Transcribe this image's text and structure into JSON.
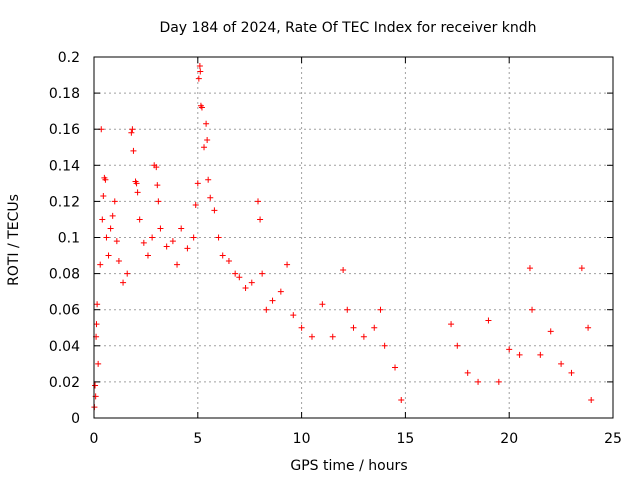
{
  "chart_data": {
    "type": "scatter",
    "title": "Day 184 of 2024, Rate Of TEC Index for receiver kndh",
    "xlabel": "GPS time / hours",
    "ylabel": "ROTI / TECUs",
    "xlim": [
      0,
      25
    ],
    "ylim": [
      0,
      0.2
    ],
    "x_ticks": [
      0,
      5,
      10,
      15,
      20,
      25
    ],
    "x_tick_labels": [
      "0",
      "5",
      "10",
      "15",
      "20",
      "25"
    ],
    "y_ticks": [
      0,
      0.02,
      0.04,
      0.06,
      0.08,
      0.1,
      0.12,
      0.14,
      0.16,
      0.18,
      0.2
    ],
    "y_tick_labels": [
      "0",
      "0.02",
      "0.04",
      "0.06",
      "0.08",
      "0.1",
      "0.12",
      "0.14",
      "0.16",
      "0.18",
      "0.2"
    ],
    "grid": true,
    "marker": "+",
    "color": "#ff0000",
    "data_gap_hours": [
      14.9,
      17.1
    ],
    "series": [
      {
        "name": "ROTI",
        "points": [
          [
            0.02,
            0.006
          ],
          [
            0.05,
            0.018
          ],
          [
            0.08,
            0.012
          ],
          [
            0.1,
            0.045
          ],
          [
            0.12,
            0.052
          ],
          [
            0.15,
            0.063
          ],
          [
            0.2,
            0.03
          ],
          [
            0.3,
            0.085
          ],
          [
            0.35,
            0.16
          ],
          [
            0.4,
            0.11
          ],
          [
            0.45,
            0.123
          ],
          [
            0.5,
            0.133
          ],
          [
            0.55,
            0.132
          ],
          [
            0.6,
            0.1
          ],
          [
            0.7,
            0.09
          ],
          [
            0.8,
            0.105
          ],
          [
            0.9,
            0.112
          ],
          [
            1.0,
            0.12
          ],
          [
            1.1,
            0.098
          ],
          [
            1.2,
            0.087
          ],
          [
            1.4,
            0.075
          ],
          [
            1.6,
            0.08
          ],
          [
            1.8,
            0.158
          ],
          [
            1.85,
            0.16
          ],
          [
            1.9,
            0.148
          ],
          [
            2.0,
            0.131
          ],
          [
            2.05,
            0.13
          ],
          [
            2.1,
            0.125
          ],
          [
            2.2,
            0.11
          ],
          [
            2.4,
            0.097
          ],
          [
            2.6,
            0.09
          ],
          [
            2.8,
            0.1
          ],
          [
            2.9,
            0.14
          ],
          [
            3.0,
            0.139
          ],
          [
            3.05,
            0.129
          ],
          [
            3.1,
            0.12
          ],
          [
            3.2,
            0.105
          ],
          [
            3.5,
            0.095
          ],
          [
            3.8,
            0.098
          ],
          [
            4.0,
            0.085
          ],
          [
            4.2,
            0.105
          ],
          [
            4.5,
            0.094
          ],
          [
            4.8,
            0.1
          ],
          [
            4.9,
            0.118
          ],
          [
            5.0,
            0.13
          ],
          [
            5.05,
            0.188
          ],
          [
            5.1,
            0.195
          ],
          [
            5.12,
            0.192
          ],
          [
            5.15,
            0.173
          ],
          [
            5.2,
            0.172
          ],
          [
            5.3,
            0.15
          ],
          [
            5.4,
            0.163
          ],
          [
            5.45,
            0.154
          ],
          [
            5.5,
            0.132
          ],
          [
            5.6,
            0.122
          ],
          [
            5.8,
            0.115
          ],
          [
            6.0,
            0.1
          ],
          [
            6.2,
            0.09
          ],
          [
            6.5,
            0.087
          ],
          [
            6.8,
            0.08
          ],
          [
            7.0,
            0.078
          ],
          [
            7.3,
            0.072
          ],
          [
            7.6,
            0.075
          ],
          [
            7.9,
            0.12
          ],
          [
            8.0,
            0.11
          ],
          [
            8.1,
            0.08
          ],
          [
            8.3,
            0.06
          ],
          [
            8.6,
            0.065
          ],
          [
            9.0,
            0.07
          ],
          [
            9.3,
            0.085
          ],
          [
            9.6,
            0.057
          ],
          [
            10.0,
            0.05
          ],
          [
            10.5,
            0.045
          ],
          [
            11.0,
            0.063
          ],
          [
            11.5,
            0.045
          ],
          [
            12.0,
            0.082
          ],
          [
            12.2,
            0.06
          ],
          [
            12.5,
            0.05
          ],
          [
            13.0,
            0.045
          ],
          [
            13.5,
            0.05
          ],
          [
            13.8,
            0.06
          ],
          [
            14.0,
            0.04
          ],
          [
            14.5,
            0.028
          ],
          [
            14.8,
            0.01
          ],
          [
            17.2,
            0.052
          ],
          [
            17.5,
            0.04
          ],
          [
            18.0,
            0.025
          ],
          [
            18.5,
            0.02
          ],
          [
            19.0,
            0.054
          ],
          [
            19.5,
            0.02
          ],
          [
            20.0,
            0.038
          ],
          [
            20.5,
            0.035
          ],
          [
            21.0,
            0.083
          ],
          [
            21.1,
            0.06
          ],
          [
            21.5,
            0.035
          ],
          [
            22.0,
            0.048
          ],
          [
            22.5,
            0.03
          ],
          [
            23.0,
            0.025
          ],
          [
            23.5,
            0.083
          ],
          [
            23.8,
            0.05
          ],
          [
            23.95,
            0.01
          ]
        ]
      }
    ]
  }
}
